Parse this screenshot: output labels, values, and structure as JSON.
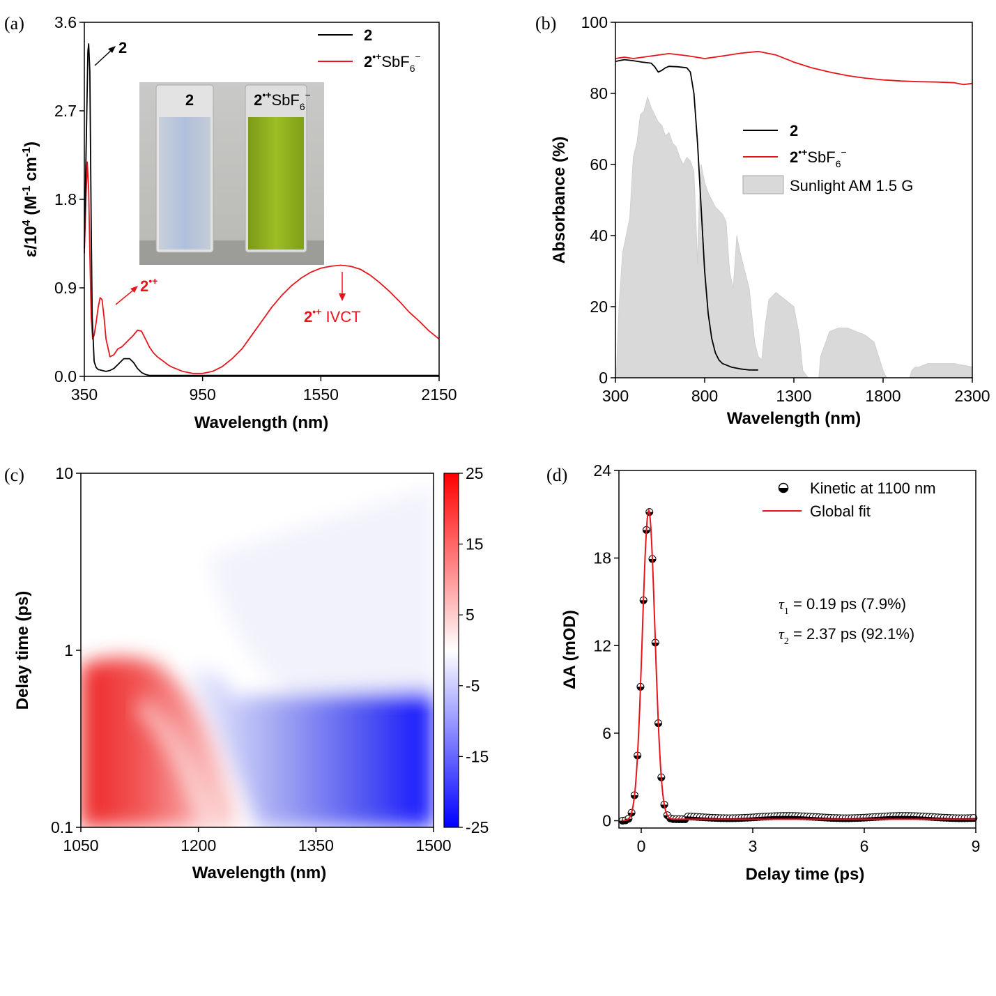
{
  "chart_data": [
    {
      "panel": "(a)",
      "type": "line",
      "xlabel": "Wavelength (nm)",
      "ylabel_main": "ε/10",
      "ylabel_sup": "4",
      "ylabel_rest": " (M",
      "ylabel_sup2": "-1",
      "ylabel_rest2": " cm",
      "ylabel_sup3": "-1",
      "ylabel_end": ")",
      "xlim": [
        350,
        2150
      ],
      "ylim": [
        0,
        3.6
      ],
      "xticks": [
        "350",
        "950",
        "1550",
        "2150"
      ],
      "yticks": [
        "0.0",
        "0.9",
        "1.8",
        "2.7",
        "3.6"
      ],
      "series": [
        {
          "name": "2",
          "color": "#000000",
          "x": [
            350,
            360,
            368,
            372,
            378,
            385,
            390,
            400,
            410,
            420,
            440,
            460,
            480,
            500,
            520,
            550,
            580,
            600,
            620,
            640,
            660,
            680,
            700,
            720,
            750,
            800,
            850,
            900,
            950,
            1000,
            1100,
            1200,
            1300,
            1400,
            1500,
            1600,
            1700,
            1800,
            1900,
            2000,
            2100,
            2150
          ],
          "y": [
            1.3,
            2.4,
            3.3,
            3.38,
            3.1,
            1.5,
            0.6,
            0.15,
            0.09,
            0.07,
            0.06,
            0.05,
            0.06,
            0.08,
            0.12,
            0.18,
            0.18,
            0.14,
            0.08,
            0.04,
            0.02,
            0.01,
            0.01,
            0.01,
            0.01,
            0.01,
            0.01,
            0.01,
            0.01,
            0.01,
            0.01,
            0.01,
            0.01,
            0.01,
            0.01,
            0.01,
            0.01,
            0.01,
            0.01,
            0.01,
            0.01,
            0.01
          ]
        },
        {
          "name": "2•+SbF6−",
          "color": "#e8141b",
          "x": [
            350,
            358,
            365,
            372,
            378,
            385,
            392,
            400,
            410,
            420,
            430,
            440,
            450,
            460,
            480,
            500,
            520,
            540,
            560,
            580,
            600,
            620,
            640,
            660,
            680,
            700,
            720,
            740,
            760,
            780,
            800,
            850,
            900,
            950,
            1000,
            1050,
            1100,
            1150,
            1200,
            1250,
            1300,
            1350,
            1400,
            1450,
            1500,
            1550,
            1600,
            1650,
            1700,
            1750,
            1800,
            1850,
            1900,
            1950,
            2000,
            2050,
            2100,
            2150
          ],
          "y": [
            1.25,
            1.8,
            2.18,
            1.9,
            1.25,
            0.6,
            0.38,
            0.42,
            0.55,
            0.7,
            0.8,
            0.78,
            0.6,
            0.38,
            0.2,
            0.22,
            0.28,
            0.3,
            0.34,
            0.38,
            0.42,
            0.47,
            0.46,
            0.38,
            0.3,
            0.24,
            0.2,
            0.17,
            0.14,
            0.11,
            0.09,
            0.05,
            0.03,
            0.03,
            0.05,
            0.1,
            0.18,
            0.28,
            0.42,
            0.56,
            0.7,
            0.82,
            0.92,
            1.0,
            1.06,
            1.1,
            1.12,
            1.13,
            1.12,
            1.09,
            1.03,
            0.95,
            0.86,
            0.76,
            0.65,
            0.56,
            0.46,
            0.38
          ]
        }
      ],
      "legend": {
        "placement": "top-right",
        "entries": [
          {
            "label": "2",
            "color": "#000000"
          },
          {
            "label_base": "2",
            "label_sup": "•+",
            "label_rest": "SbF",
            "label_sub": "6",
            "label_sup2": "−",
            "color": "#e8141b"
          }
        ]
      },
      "annotations": [
        {
          "text_base": "2",
          "color": "#000000",
          "x": 385,
          "y": 3.3
        },
        {
          "text_base": "2",
          "text_sup": "•+",
          "color": "#e8141b",
          "x": 530,
          "y": 0.85
        },
        {
          "text_base": "2",
          "text_sup": "•+",
          "text_rest": " IVCT",
          "color": "#e8141b",
          "x": 1650,
          "y": 0.5
        }
      ],
      "inset": {
        "label_left": "2",
        "label_right_base": "2",
        "label_right_sup": "•+",
        "label_right_rest": "SbF",
        "label_right_sub": "6",
        "label_right_sup2": "−",
        "left_color": "#a9b8d6",
        "right_color": "#8aab1c"
      }
    },
    {
      "panel": "(b)",
      "type": "line",
      "xlabel": "Wavelength (nm)",
      "ylabel": "Absorbance (%)",
      "xlim": [
        300,
        2300
      ],
      "ylim": [
        0,
        100
      ],
      "xticks": [
        "300",
        "800",
        "1300",
        "1800",
        "2300"
      ],
      "yticks": [
        "0",
        "20",
        "40",
        "60",
        "80",
        "100"
      ],
      "series": [
        {
          "name": "2",
          "color": "#000000",
          "x": [
            300,
            350,
            400,
            450,
            500,
            520,
            540,
            560,
            580,
            600,
            650,
            700,
            720,
            740,
            760,
            780,
            800,
            820,
            840,
            860,
            880,
            900,
            950,
            1000,
            1050,
            1100
          ],
          "y": [
            89,
            89.5,
            89.2,
            88.8,
            88.5,
            87.5,
            86,
            86.5,
            87.2,
            87.6,
            87.5,
            87.2,
            86,
            80,
            66,
            48,
            30,
            18,
            11,
            7,
            5,
            4,
            3,
            2.5,
            2.2,
            2.2
          ]
        },
        {
          "name": "2•+SbF6−",
          "color": "#e8141b",
          "x": [
            300,
            350,
            400,
            500,
            600,
            700,
            800,
            900,
            1000,
            1100,
            1200,
            1300,
            1400,
            1500,
            1600,
            1700,
            1800,
            1900,
            2000,
            2100,
            2200,
            2250,
            2300
          ],
          "y": [
            89.8,
            90.2,
            89.8,
            90.5,
            91.2,
            90.6,
            89.8,
            90.5,
            91.3,
            91.8,
            90.8,
            88.8,
            87.2,
            86,
            85,
            84.3,
            83.8,
            83.5,
            83.3,
            83.2,
            83,
            82.5,
            82.8
          ]
        },
        {
          "name": "Sunlight AM 1.5 G",
          "type": "area",
          "color": "#d9d9d9",
          "x": [
            300,
            305,
            320,
            340,
            360,
            380,
            400,
            420,
            440,
            460,
            480,
            500,
            520,
            540,
            560,
            580,
            600,
            620,
            640,
            660,
            680,
            700,
            720,
            740,
            760,
            770,
            780,
            800,
            820,
            840,
            860,
            900,
            920,
            940,
            960,
            980,
            1000,
            1050,
            1080,
            1100,
            1120,
            1140,
            1160,
            1200,
            1250,
            1300,
            1330,
            1350,
            1380,
            1400,
            1440,
            1450,
            1500,
            1550,
            1600,
            1650,
            1700,
            1750,
            1800,
            1820,
            1850,
            1900,
            1950,
            1960,
            1980,
            2000,
            2050,
            2100,
            2150,
            2200,
            2250,
            2300
          ],
          "y": [
            0,
            1,
            20,
            35,
            40,
            45,
            62,
            66,
            74,
            75,
            79,
            76,
            74,
            72,
            71,
            68,
            69,
            66,
            65,
            62,
            60,
            62,
            61,
            58,
            32,
            50,
            60,
            55,
            52,
            50,
            48,
            46,
            44,
            30,
            25,
            40,
            35,
            25,
            10,
            6,
            5,
            15,
            22,
            24,
            22,
            20,
            12,
            2,
            0,
            0,
            0,
            6,
            13,
            14,
            14,
            13,
            12,
            10,
            2,
            0,
            0,
            0,
            0,
            2,
            3,
            3,
            4,
            4,
            4,
            4,
            3.5,
            3
          ]
        }
      ],
      "legend": {
        "placement": "center-right",
        "entries": [
          {
            "label": "2",
            "color": "#000000"
          },
          {
            "label_base": "2",
            "label_sup": "•+",
            "label_rest": "SbF",
            "label_sub": "6",
            "label_sup2": "−",
            "color": "#e8141b"
          },
          {
            "label": "Sunlight AM 1.5 G",
            "color": "#d9d9d9"
          }
        ]
      }
    },
    {
      "panel": "(c)",
      "type": "heatmap",
      "xlabel": "Wavelength (nm)",
      "ylabel": "Delay time (ps)",
      "xlim": [
        1050,
        1500
      ],
      "ylim": [
        0.1,
        10
      ],
      "yscale": "log",
      "xticks": [
        "1050",
        "1200",
        "1350",
        "1500"
      ],
      "yticks": [
        "0.1",
        "1",
        "10"
      ],
      "colorbar": {
        "ticks": [
          "25",
          "15",
          "5",
          "-5",
          "-15",
          "-25"
        ],
        "range": [
          -25,
          25
        ],
        "colors": [
          "#0000ff",
          "#ffffff",
          "#ff0000"
        ]
      }
    },
    {
      "panel": "(d)",
      "type": "scatter",
      "xlabel": "Delay time (ps)",
      "ylabel": "ΔA (mOD)",
      "xlim": [
        -0.6,
        9
      ],
      "ylim": [
        -0.5,
        24
      ],
      "xticks": [
        "0",
        "3",
        "6",
        "9"
      ],
      "yticks": [
        "0",
        "6",
        "12",
        "18",
        "24"
      ],
      "legend": {
        "placement": "top-right",
        "entries": [
          {
            "label": "Kinetic at 1100 nm",
            "marker": "half-filled-circle"
          },
          {
            "label": "Global fit",
            "color": "#e8141b"
          }
        ]
      },
      "annotations": [
        {
          "symbol": "τ",
          "sub": "1",
          "text": " = 0.19 ps (7.9%)"
        },
        {
          "symbol": "τ",
          "sub": "2",
          "text": " = 2.37 ps (92.1%)"
        }
      ],
      "fit": {
        "peak_x": 0.2,
        "peak_y": 21.2,
        "sigma": 0.17
      },
      "kinetic_x_step": 0.08
    }
  ]
}
